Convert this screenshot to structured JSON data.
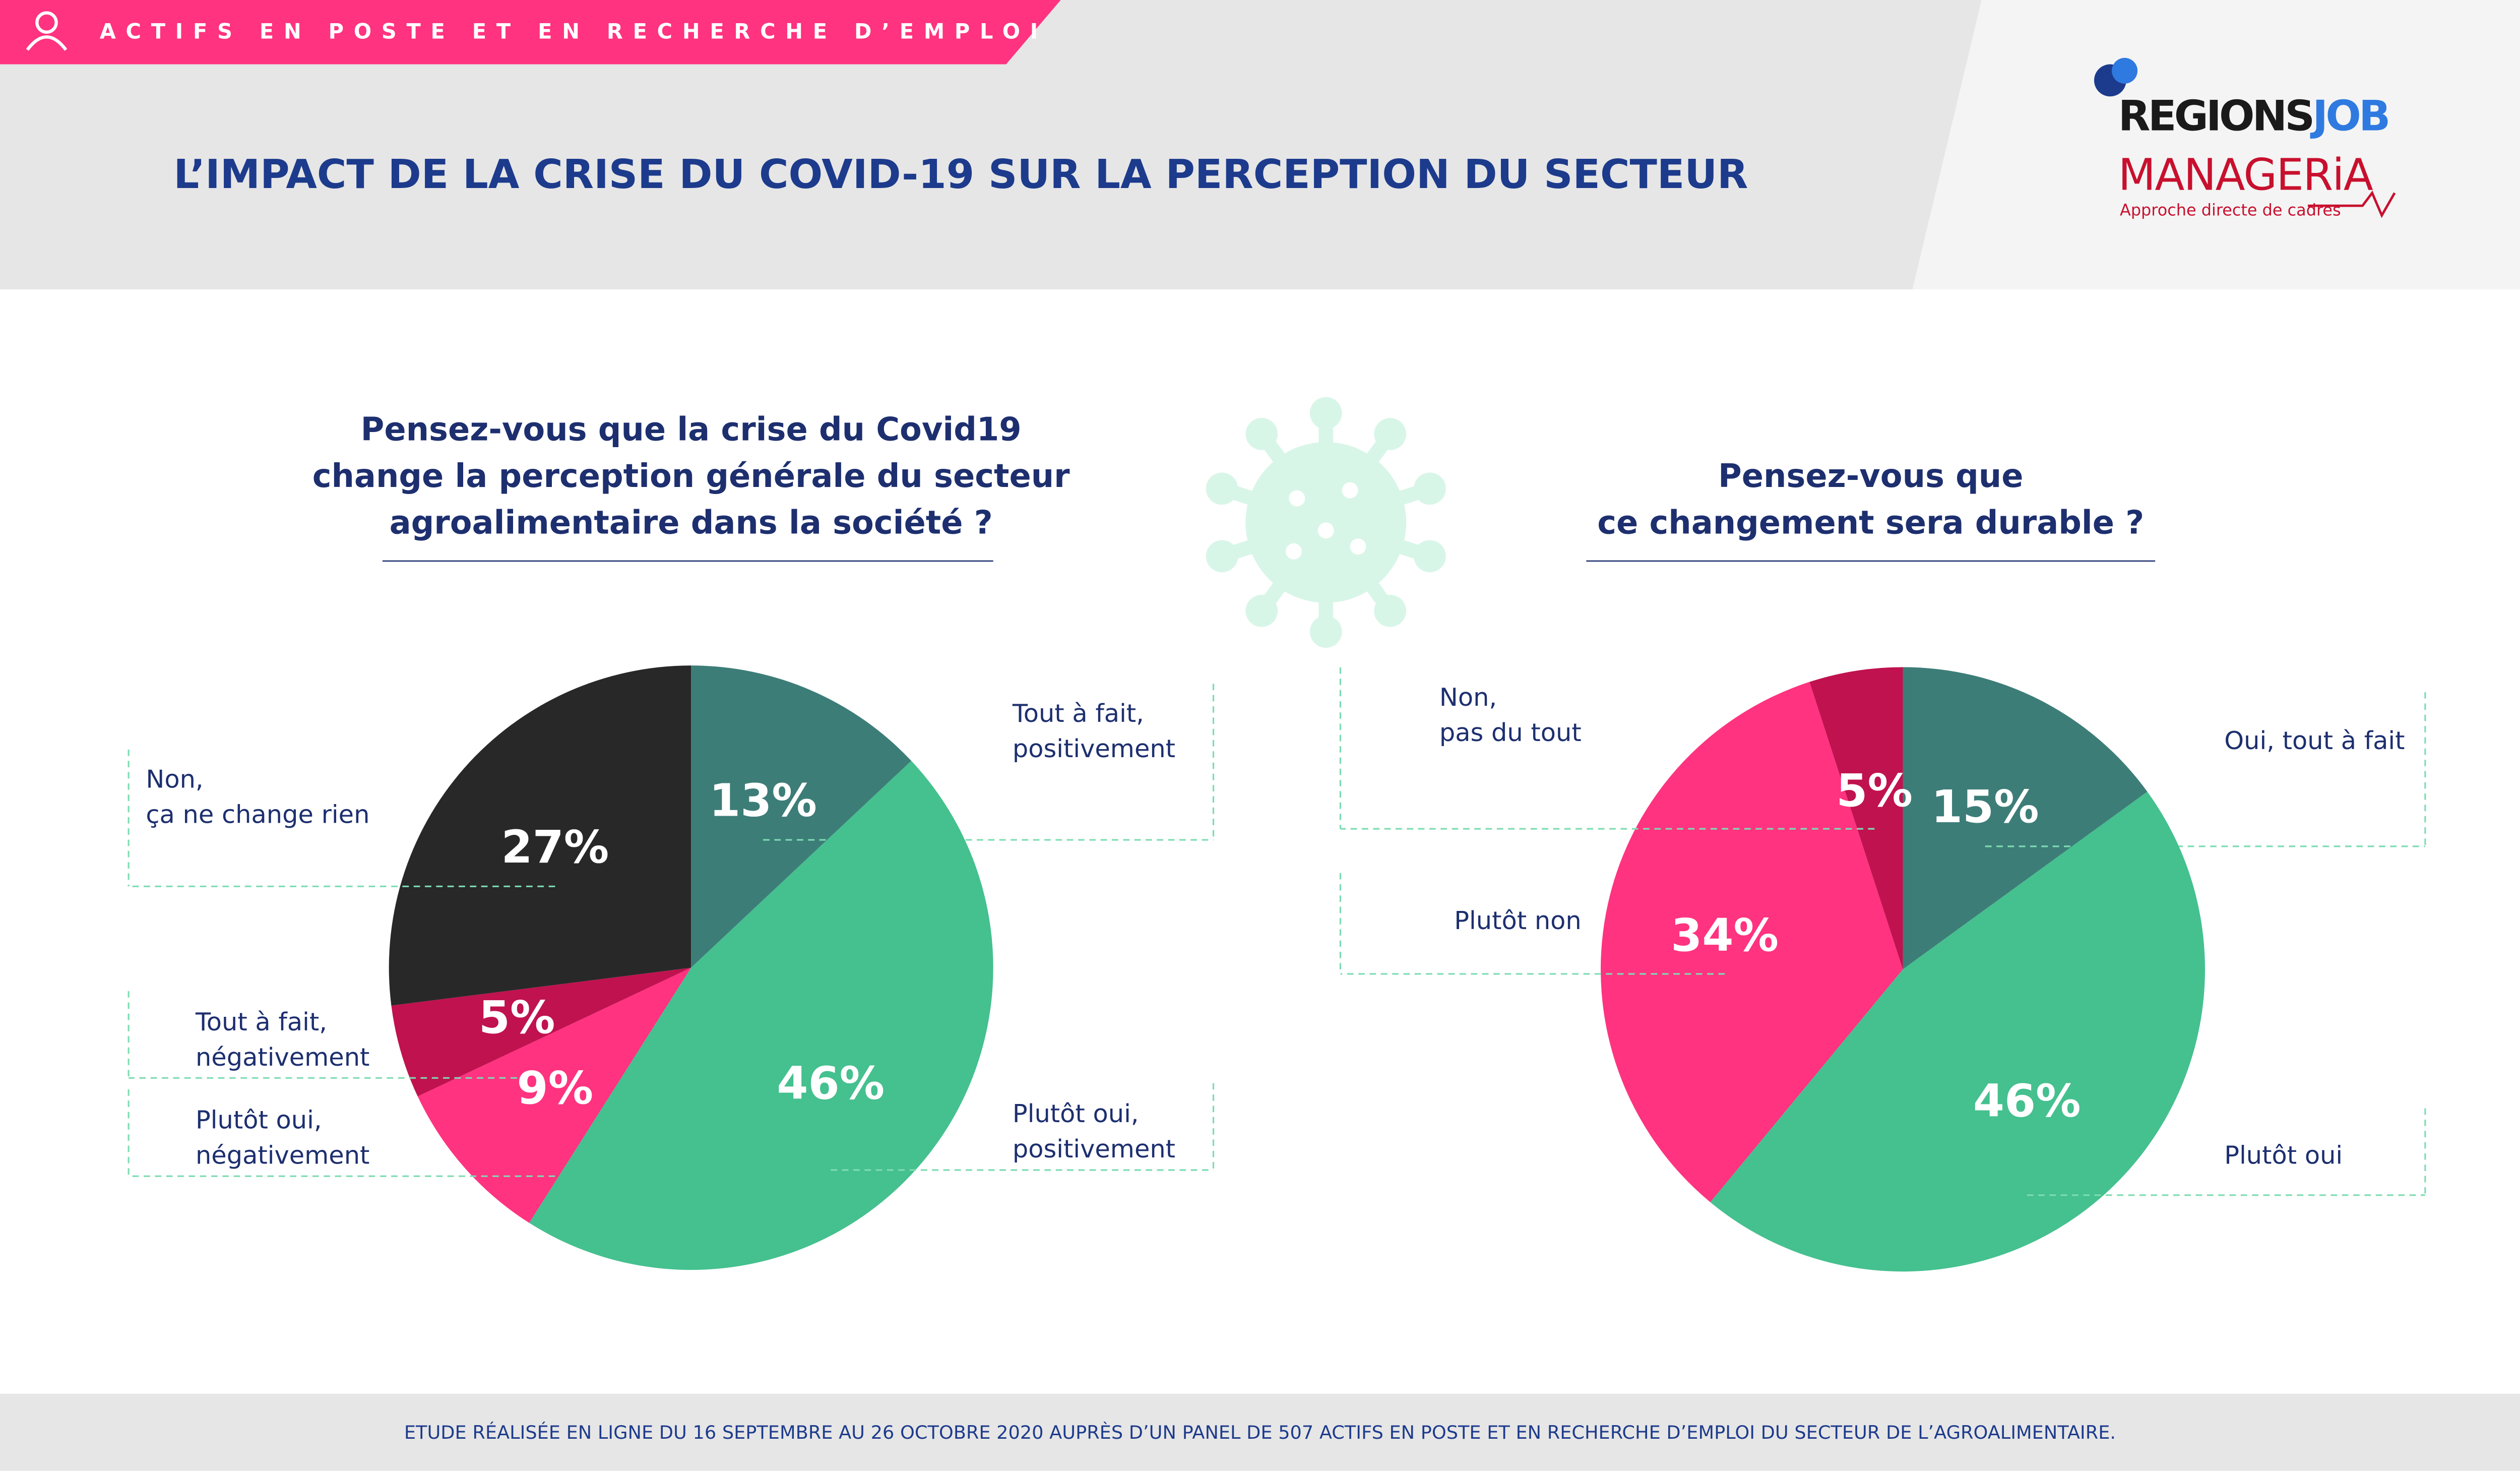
{
  "header": {
    "banner": "ACTIFS EN POSTE ET EN RECHERCHE D’EMPLOI",
    "title": "L’IMPACT DE LA CRISE DU COVID-19 SUR LA PERCEPTION DU SECTEUR"
  },
  "logos": {
    "regions": "REGIONS",
    "job": "JOB",
    "manageria": "MANAGERiA",
    "tagline": "Approche directe de cadres"
  },
  "chart_data": [
    {
      "type": "pie",
      "title": "Pensez-vous que la crise du Covid19\nchange la perception générale du secteur\nagroalimentaire dans la société ?",
      "categories": [
        "Tout à fait,\npositivement",
        "Plutôt oui,\npositivement",
        "Plutôt oui,\nnégativement",
        "Tout à fait,\nnégativement",
        "Non,\nça ne change rien"
      ],
      "values": [
        13,
        46,
        9,
        5,
        27
      ],
      "value_labels": [
        "13%",
        "46%",
        "9%",
        "5%",
        "27%"
      ],
      "colors": [
        "#3d7d78",
        "#45c08f",
        "#ff3380",
        "#c0124f",
        "#282828"
      ]
    },
    {
      "type": "pie",
      "title": "Pensez-vous que\nce changement sera durable ?",
      "categories": [
        "Oui, tout à fait",
        "Plutôt oui",
        "Plutôt non",
        "Non,\npas du tout"
      ],
      "values": [
        15,
        46,
        34,
        5
      ],
      "value_labels": [
        "15%",
        "46%",
        "34%",
        "5%"
      ],
      "colors": [
        "#3d7d78",
        "#45c08f",
        "#ff3380",
        "#c0124f"
      ]
    }
  ],
  "footer": "ETUDE RÉALISÉE EN LIGNE DU 16 SEPTEMBRE AU 26 OCTOBRE 2020 AUPRÈS D’UN PANEL DE 507 ACTIFS EN POSTE ET EN RECHERCHE D’EMPLOI DU SECTEUR DE L’AGROALIMENTAIRE."
}
